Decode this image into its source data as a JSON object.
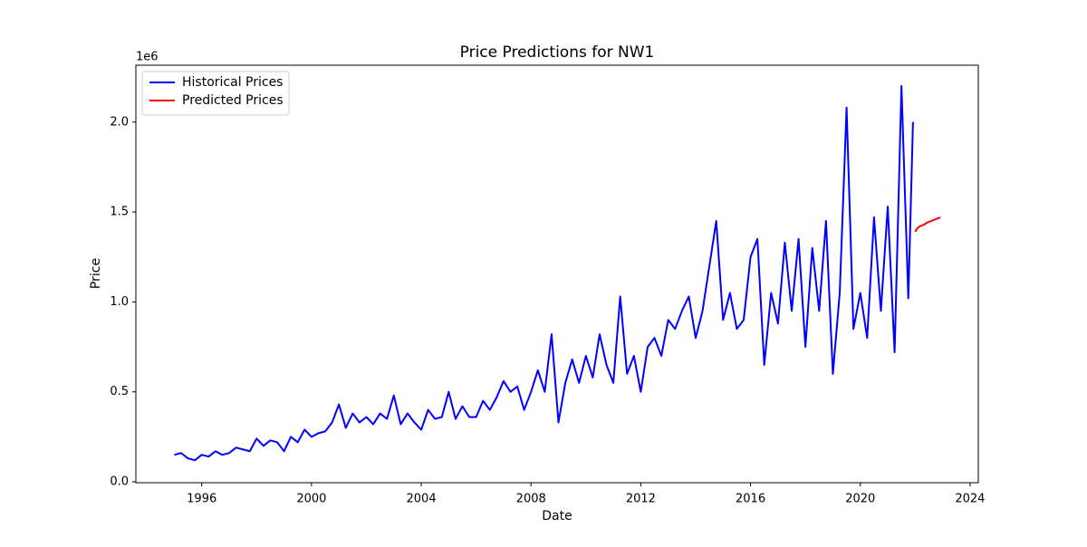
{
  "chart_data": {
    "type": "line",
    "title": "Price Predictions for NW1",
    "x_label": "Date",
    "y_label": "Price",
    "y_offset_label": "1e6",
    "legend": "upper left",
    "grid": false,
    "xlim": [
      1993.6,
      2024.3
    ],
    "ylim": [
      -0.005,
      2.316
    ],
    "xticks": [
      1996,
      2000,
      2004,
      2008,
      2012,
      2016,
      2020,
      2024
    ],
    "yticks": [
      {
        "value": 0,
        "label": "0.0"
      },
      0.5,
      {
        "value": 1,
        "label": "1.0"
      },
      1.5,
      {
        "value": 2,
        "label": "2.0"
      }
    ],
    "series": [
      {
        "name": "Historical Prices",
        "color": "#0000ff",
        "x": [
          1995,
          1995.25,
          1995.5,
          1995.75,
          1996,
          1996.25,
          1996.5,
          1996.75,
          1997,
          1997.25,
          1997.5,
          1997.75,
          1998,
          1998.25,
          1998.5,
          1998.75,
          1999,
          1999.25,
          1999.5,
          1999.75,
          2000,
          2000.25,
          2000.5,
          2000.75,
          2001,
          2001.25,
          2001.5,
          2001.75,
          2002,
          2002.25,
          2002.5,
          2002.75,
          2003,
          2003.25,
          2003.5,
          2003.75,
          2004,
          2004.25,
          2004.5,
          2004.75,
          2005,
          2005.25,
          2005.5,
          2005.75,
          2006,
          2006.25,
          2006.5,
          2006.75,
          2007,
          2007.25,
          2007.5,
          2007.75,
          2008,
          2008.25,
          2008.5,
          2008.75,
          2009,
          2009.25,
          2009.5,
          2009.75,
          2010,
          2010.25,
          2010.5,
          2010.75,
          2011,
          2011.25,
          2011.5,
          2011.75,
          2012,
          2012.25,
          2012.5,
          2012.75,
          2013,
          2013.25,
          2013.5,
          2013.75,
          2014,
          2014.25,
          2014.5,
          2014.75,
          2015,
          2015.25,
          2015.5,
          2015.75,
          2016,
          2016.25,
          2016.5,
          2016.75,
          2017,
          2017.25,
          2017.5,
          2017.75,
          2018,
          2018.25,
          2018.5,
          2018.75,
          2019,
          2019.25,
          2019.5,
          2019.75,
          2020,
          2020.25,
          2020.5,
          2020.75,
          2021,
          2021.25,
          2021.5,
          2021.75,
          2021.92
        ],
        "values": [
          0.15,
          0.16,
          0.13,
          0.12,
          0.15,
          0.14,
          0.17,
          0.15,
          0.16,
          0.19,
          0.18,
          0.17,
          0.24,
          0.2,
          0.23,
          0.22,
          0.17,
          0.25,
          0.22,
          0.29,
          0.25,
          0.27,
          0.28,
          0.33,
          0.43,
          0.3,
          0.38,
          0.33,
          0.36,
          0.32,
          0.38,
          0.35,
          0.48,
          0.32,
          0.38,
          0.33,
          0.29,
          0.4,
          0.35,
          0.36,
          0.5,
          0.35,
          0.42,
          0.36,
          0.36,
          0.45,
          0.4,
          0.47,
          0.56,
          0.5,
          0.53,
          0.4,
          0.5,
          0.62,
          0.5,
          0.82,
          0.33,
          0.55,
          0.68,
          0.55,
          0.7,
          0.58,
          0.82,
          0.65,
          0.55,
          1.03,
          0.6,
          0.7,
          0.5,
          0.75,
          0.8,
          0.7,
          0.9,
          0.85,
          0.95,
          1.03,
          0.8,
          0.95,
          1.2,
          1.45,
          0.9,
          1.05,
          0.85,
          0.9,
          1.25,
          1.35,
          0.65,
          1.05,
          0.88,
          1.33,
          0.95,
          1.35,
          0.75,
          1.3,
          0.95,
          1.45,
          0.6,
          1.05,
          2.08,
          0.85,
          1.05,
          0.8,
          1.47,
          0.95,
          1.53,
          0.72,
          2.2,
          1.02,
          2.0
        ]
      },
      {
        "name": "Predicted Prices",
        "color": "#ff0000",
        "x": [
          2022,
          2022.08,
          2022.17,
          2022.25,
          2022.33,
          2022.42,
          2022.5,
          2022.58,
          2022.67,
          2022.75,
          2022.83,
          2022.92
        ],
        "values": [
          1.39,
          1.41,
          1.42,
          1.425,
          1.43,
          1.44,
          1.445,
          1.45,
          1.455,
          1.46,
          1.465,
          1.47
        ]
      }
    ]
  }
}
